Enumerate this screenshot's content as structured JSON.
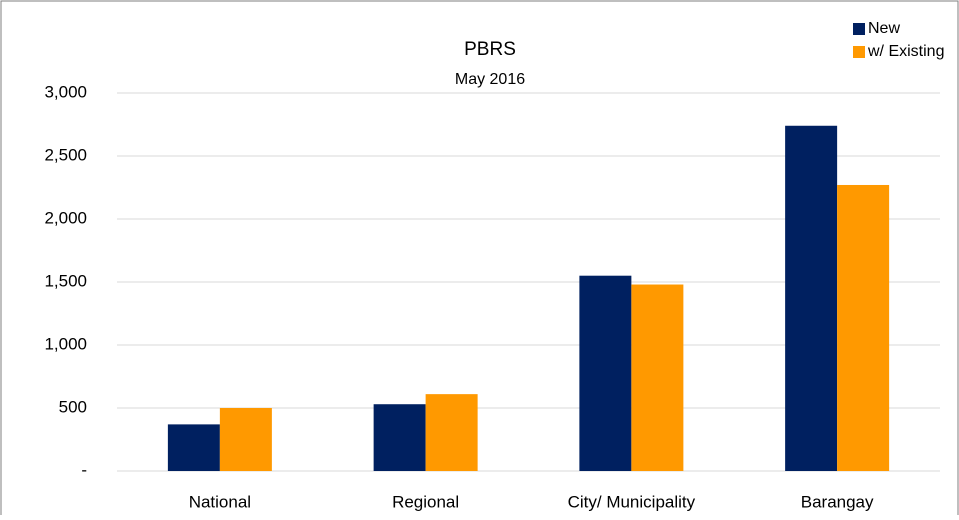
{
  "chart_data": {
    "type": "bar",
    "title": "PBRS",
    "subtitle": "May 2016",
    "categories": [
      "National",
      "Regional",
      "City/ Municipality",
      "Barangay"
    ],
    "series": [
      {
        "name": "New",
        "color": "#002060",
        "values": [
          370,
          530,
          1550,
          2740
        ]
      },
      {
        "name": "w/ Existing",
        "color": "#ff9900",
        "values": [
          500,
          610,
          1480,
          2270
        ]
      }
    ],
    "ylim": [
      0,
      3000
    ],
    "yticks": [
      {
        "value": 0,
        "label": "-"
      },
      500,
      {
        "value": 1000,
        "label": "1,000"
      },
      {
        "value": 1500,
        "label": "1,500"
      },
      {
        "value": 2000,
        "label": "2,000"
      },
      {
        "value": 2500,
        "label": "2,500"
      },
      {
        "value": 3000,
        "label": "3,000"
      }
    ],
    "grid": true,
    "legend": "top-right"
  }
}
